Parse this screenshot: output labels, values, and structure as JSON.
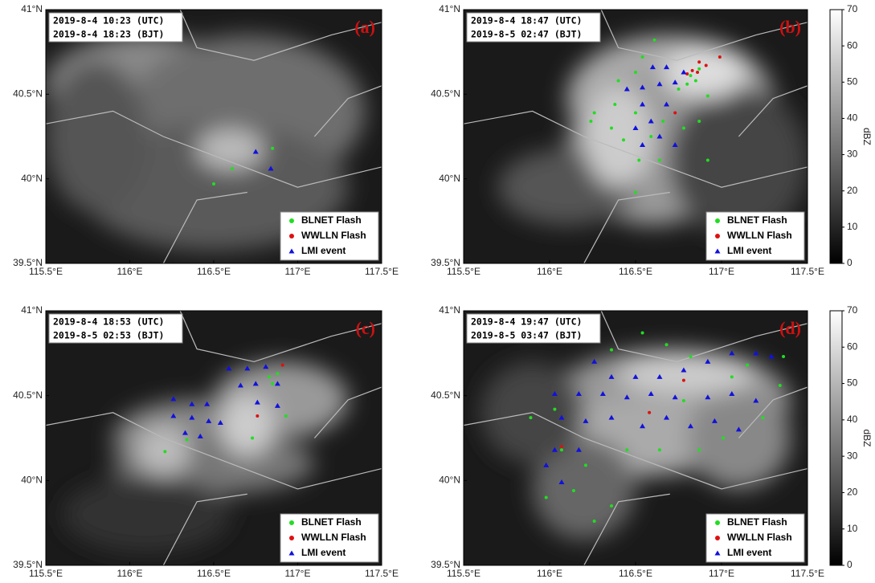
{
  "chart_data": [
    {
      "type": "scatter",
      "label": "(a)",
      "annotations": [
        "2019-8-4 10:23 (UTC)",
        "2019-8-4 18:23 (BJT)"
      ],
      "xlim": [
        115.5,
        117.5
      ],
      "ylim": [
        39.5,
        41
      ],
      "xticks": [
        {
          "value": 115.5,
          "label": "115.5°E"
        },
        {
          "value": 116,
          "label": "116°E"
        },
        {
          "value": 116.5,
          "label": "116.5°E"
        },
        {
          "value": 117,
          "label": "117°E"
        },
        {
          "value": 117.5,
          "label": "117.5°E"
        }
      ],
      "yticks": [
        {
          "value": 39.5,
          "label": "39.5°N"
        },
        {
          "value": 40,
          "label": "40°N"
        },
        {
          "value": 40.5,
          "label": "40.5°N"
        },
        {
          "value": 41,
          "label": "41°N"
        }
      ],
      "legend": "lower right",
      "series": [
        {
          "name": "BLNET Flash",
          "color": "#22dd22",
          "marker": "circle",
          "x": [
            116.61,
            116.5,
            116.85
          ],
          "values": [
            40.06,
            39.97,
            40.18
          ]
        },
        {
          "name": "WWLLN Flash",
          "color": "#dd1111",
          "marker": "circle",
          "x": [],
          "values": []
        },
        {
          "name": "LMI event",
          "color": "#1111dd",
          "marker": "triangle",
          "x": [
            116.75,
            116.84
          ],
          "values": [
            40.16,
            40.06
          ]
        }
      ]
    },
    {
      "type": "scatter",
      "label": "(b)",
      "annotations": [
        "2019-8-4 18:47 (UTC)",
        "2019-8-5 02:47 (BJT)"
      ],
      "xlim": [
        115.5,
        117.5
      ],
      "ylim": [
        39.5,
        41
      ],
      "xticks": [
        {
          "value": 115.5,
          "label": "115.5°E"
        },
        {
          "value": 116,
          "label": "116°E"
        },
        {
          "value": 116.5,
          "label": "116.5°E"
        },
        {
          "value": 117,
          "label": "117°E"
        },
        {
          "value": 117.5,
          "label": "117.5°E"
        }
      ],
      "yticks": [
        {
          "value": 39.5,
          "label": "39.5°N"
        },
        {
          "value": 40,
          "label": "40°N"
        },
        {
          "value": 40.5,
          "label": "40.5°N"
        },
        {
          "value": 41,
          "label": "41°N"
        }
      ],
      "legend": "lower right",
      "colorbar": {
        "label": "dBZ",
        "lim": [
          0,
          70
        ],
        "ticks": [
          0,
          10,
          20,
          30,
          40,
          50,
          60,
          70
        ]
      },
      "series": [
        {
          "name": "BLNET Flash",
          "color": "#22dd22",
          "marker": "circle",
          "x": [
            116.82,
            116.85,
            116.8,
            116.75,
            116.87,
            116.61,
            116.54,
            116.5,
            116.4,
            116.38,
            116.26,
            116.36,
            116.5,
            116.59,
            116.66,
            116.78,
            116.87,
            116.92,
            116.52,
            116.5,
            116.43,
            116.24,
            116.92,
            116.64
          ],
          "values": [
            40.61,
            40.58,
            40.56,
            40.53,
            40.65,
            40.82,
            40.72,
            40.63,
            40.58,
            40.44,
            40.39,
            40.3,
            40.39,
            40.25,
            40.34,
            40.3,
            40.34,
            40.11,
            40.11,
            39.92,
            40.23,
            40.34,
            40.49,
            40.11
          ]
        },
        {
          "name": "WWLLN Flash",
          "color": "#dd1111",
          "marker": "circle",
          "x": [
            116.87,
            116.91,
            116.86,
            116.83,
            116.8,
            116.99,
            116.73
          ],
          "values": [
            40.69,
            40.67,
            40.63,
            40.64,
            40.62,
            40.72,
            40.39
          ]
        },
        {
          "name": "LMI event",
          "color": "#1111dd",
          "marker": "triangle",
          "x": [
            116.6,
            116.68,
            116.54,
            116.64,
            116.73,
            116.78,
            116.45,
            116.54,
            116.68,
            116.59,
            116.5,
            116.54,
            116.73,
            116.64
          ],
          "values": [
            40.66,
            40.66,
            40.54,
            40.56,
            40.57,
            40.63,
            40.53,
            40.44,
            40.44,
            40.34,
            40.3,
            40.2,
            40.2,
            40.25
          ]
        }
      ]
    },
    {
      "type": "scatter",
      "label": "(c)",
      "annotations": [
        "2019-8-4 18:53 (UTC)",
        "2019-8-5 02:53 (BJT)"
      ],
      "xlim": [
        115.5,
        117.5
      ],
      "ylim": [
        39.5,
        41
      ],
      "xticks": [
        {
          "value": 115.5,
          "label": "115.5°E"
        },
        {
          "value": 116,
          "label": "116°E"
        },
        {
          "value": 116.5,
          "label": "116.5°E"
        },
        {
          "value": 117,
          "label": "117°E"
        },
        {
          "value": 117.5,
          "label": "117.5°E"
        }
      ],
      "yticks": [
        {
          "value": 39.5,
          "label": "39.5°N"
        },
        {
          "value": 40,
          "label": "40°N"
        },
        {
          "value": 40.5,
          "label": "40.5°N"
        },
        {
          "value": 41,
          "label": "41°N"
        }
      ],
      "legend": "lower right",
      "series": [
        {
          "name": "BLNET Flash",
          "color": "#22dd22",
          "marker": "circle",
          "x": [
            116.88,
            116.85,
            116.73,
            116.34,
            116.21,
            116.93,
            116.83
          ],
          "values": [
            40.63,
            40.57,
            40.25,
            40.24,
            40.17,
            40.38,
            40.61
          ]
        },
        {
          "name": "WWLLN Flash",
          "color": "#dd1111",
          "marker": "circle",
          "x": [
            116.91,
            116.76
          ],
          "values": [
            40.68,
            40.38
          ]
        },
        {
          "name": "LMI event",
          "color": "#1111dd",
          "marker": "triangle",
          "x": [
            116.59,
            116.7,
            116.81,
            116.26,
            116.37,
            116.46,
            116.26,
            116.37,
            116.47,
            116.54,
            116.66,
            116.75,
            116.88,
            116.76,
            116.88,
            116.33,
            116.42
          ],
          "values": [
            40.66,
            40.66,
            40.67,
            40.48,
            40.45,
            40.45,
            40.38,
            40.37,
            40.35,
            40.34,
            40.56,
            40.57,
            40.57,
            40.46,
            40.44,
            40.28,
            40.26
          ]
        }
      ]
    },
    {
      "type": "scatter",
      "label": "(d)",
      "annotations": [
        "2019-8-4 19:47 (UTC)",
        "2019-8-5 03:47 (BJT)"
      ],
      "xlim": [
        115.5,
        117.5
      ],
      "ylim": [
        39.5,
        41
      ],
      "xticks": [
        {
          "value": 115.5,
          "label": "115.5°E"
        },
        {
          "value": 116,
          "label": "116°E"
        },
        {
          "value": 116.5,
          "label": "116.5°E"
        },
        {
          "value": 117,
          "label": "117°E"
        },
        {
          "value": 117.5,
          "label": "117.5°E"
        }
      ],
      "yticks": [
        {
          "value": 39.5,
          "label": "39.5°N"
        },
        {
          "value": 40,
          "label": "40°N"
        },
        {
          "value": 40.5,
          "label": "40.5°N"
        },
        {
          "value": 41,
          "label": "41°N"
        }
      ],
      "legend": "lower right",
      "colorbar": {
        "label": "dBZ",
        "lim": [
          0,
          70
        ],
        "ticks": [
          0,
          10,
          20,
          30,
          40,
          50,
          60,
          70
        ]
      },
      "series": [
        {
          "name": "BLNET Flash",
          "color": "#22dd22",
          "marker": "circle",
          "x": [
            116.54,
            116.36,
            116.82,
            117.15,
            117.36,
            116.03,
            116.07,
            116.14,
            116.26,
            116.36,
            116.64,
            116.87,
            117.01,
            117.24,
            117.34,
            116.68,
            115.89,
            116.21,
            116.45,
            116.78,
            117.06,
            115.98
          ],
          "values": [
            40.87,
            40.77,
            40.73,
            40.68,
            40.73,
            40.42,
            40.18,
            39.94,
            39.76,
            39.85,
            40.18,
            40.18,
            40.25,
            40.37,
            40.56,
            40.8,
            40.37,
            40.09,
            40.18,
            40.47,
            40.61,
            39.9
          ]
        },
        {
          "name": "WWLLN Flash",
          "color": "#dd1111",
          "marker": "circle",
          "x": [
            116.07,
            116.58,
            116.78
          ],
          "values": [
            40.2,
            40.4,
            40.59
          ]
        },
        {
          "name": "LMI event",
          "color": "#1111dd",
          "marker": "triangle",
          "x": [
            116.26,
            116.36,
            116.5,
            116.64,
            116.78,
            116.92,
            117.06,
            117.2,
            117.29,
            116.03,
            116.17,
            116.31,
            116.45,
            116.59,
            116.73,
            116.92,
            117.06,
            117.2,
            116.07,
            116.21,
            116.36,
            116.54,
            116.68,
            116.82,
            116.96,
            117.1,
            116.03,
            116.17,
            115.98,
            116.07
          ],
          "values": [
            40.7,
            40.61,
            40.61,
            40.61,
            40.65,
            40.7,
            40.75,
            40.75,
            40.73,
            40.51,
            40.51,
            40.51,
            40.49,
            40.51,
            40.49,
            40.49,
            40.51,
            40.47,
            40.37,
            40.35,
            40.37,
            40.32,
            40.37,
            40.32,
            40.35,
            40.3,
            40.18,
            40.18,
            40.09,
            39.99
          ]
        }
      ]
    }
  ]
}
